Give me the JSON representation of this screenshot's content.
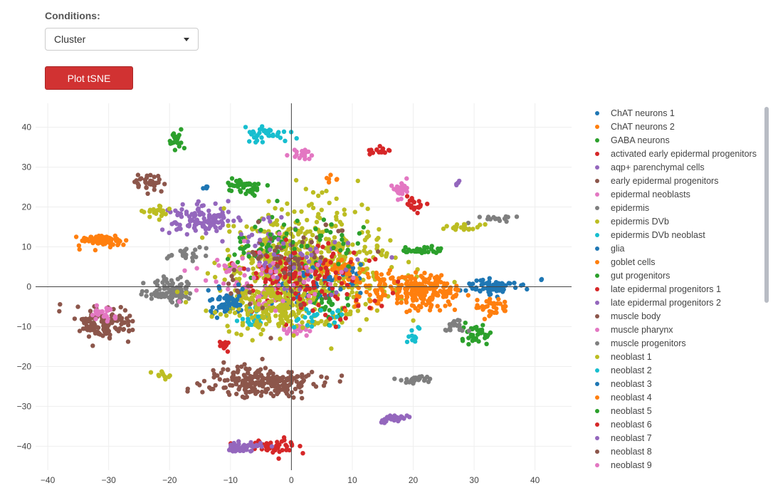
{
  "conditions": {
    "label": "Conditions:",
    "selected": "Cluster"
  },
  "plot_button": {
    "label": "Plot tSNE"
  },
  "chart_data": {
    "type": "scatter",
    "xlim": [
      -42,
      46
    ],
    "ylim": [
      -46,
      46
    ],
    "x_ticks": [
      -40,
      -30,
      -20,
      -10,
      0,
      10,
      20,
      30,
      40
    ],
    "y_ticks": [
      40,
      30,
      20,
      10,
      0,
      -10,
      -20,
      -30,
      -40
    ],
    "grid": true,
    "zero_lines": true,
    "legend_position": "right",
    "series": [
      {
        "name": "ChAT neurons 1",
        "color": "#1f77b4",
        "clusters": [
          [
            33,
            0,
            4,
            2,
            70
          ],
          [
            0.3,
            -1.5,
            4,
            4,
            30
          ],
          [
            -11,
            -5,
            2,
            2,
            25
          ]
        ]
      },
      {
        "name": "ChAT neurons 2",
        "color": "#ff7f0e",
        "clusters": [
          [
            -31,
            11.5,
            4,
            1.5,
            70
          ],
          [
            33,
            -5,
            3,
            2,
            35
          ],
          [
            7,
            27,
            1,
            1,
            6
          ]
        ]
      },
      {
        "name": "GABA neurons",
        "color": "#2ca02c",
        "clusters": [
          [
            -19,
            37,
            1.5,
            3,
            18
          ],
          [
            -8,
            25,
            3,
            2,
            45
          ],
          [
            30,
            -12,
            2.5,
            2.5,
            35
          ],
          [
            22,
            9,
            4,
            1,
            30
          ]
        ]
      },
      {
        "name": "activated early epidermal progenitors",
        "color": "#d62728",
        "clusters": [
          [
            14,
            34,
            2,
            1,
            18
          ],
          [
            20,
            21,
            2,
            1.5,
            20
          ],
          [
            -3,
            -40,
            4,
            2,
            50
          ],
          [
            -11,
            -14,
            0.8,
            2,
            10
          ]
        ]
      },
      {
        "name": "aqp+ parenchymal cells",
        "color": "#9467bd",
        "clusters": [
          [
            -15,
            17,
            5,
            3.5,
            120
          ],
          [
            -8,
            -40,
            3,
            1.5,
            40
          ],
          [
            17,
            -33,
            3,
            1,
            30
          ],
          [
            27,
            26,
            0.6,
            0.6,
            5
          ]
        ]
      },
      {
        "name": "early epidermal progenitors",
        "color": "#8c564b",
        "clusters": [
          [
            -5,
            -24,
            9,
            4,
            220
          ],
          [
            -31,
            -9,
            5,
            4,
            130
          ],
          [
            -23,
            26,
            2.5,
            2,
            35
          ]
        ]
      },
      {
        "name": "epidermal neoblasts",
        "color": "#e377c2",
        "clusters": [
          [
            2,
            33,
            2,
            1.5,
            18
          ],
          [
            18,
            24,
            2,
            2,
            25
          ],
          [
            1,
            -11,
            2,
            1.5,
            25
          ],
          [
            -31,
            -6.5,
            2,
            1.5,
            25
          ]
        ]
      },
      {
        "name": "epidermis",
        "color": "#7f7f7f",
        "clusters": [
          [
            -20,
            -1,
            4,
            3,
            90
          ],
          [
            20,
            -23,
            3,
            1,
            25
          ],
          [
            27,
            -10,
            2,
            1.5,
            20
          ],
          [
            33,
            17,
            3,
            1,
            15
          ]
        ]
      },
      {
        "name": "epidermis DVb",
        "color": "#bcbd22",
        "clusters": [
          [
            2,
            5,
            14,
            13,
            650
          ],
          [
            -22,
            19,
            2.5,
            1.5,
            20
          ],
          [
            28,
            15,
            4,
            1,
            20
          ],
          [
            -21,
            -22,
            1.5,
            1,
            10
          ]
        ]
      },
      {
        "name": "epidermis DVb neoblast",
        "color": "#17becf",
        "clusters": [
          [
            -4,
            38,
            4,
            2,
            40
          ],
          [
            -6,
            -8,
            2,
            3,
            25
          ],
          [
            20,
            -12,
            1,
            1.5,
            10
          ]
        ]
      },
      {
        "name": "glia",
        "color": "#1f77b4",
        "clusters": [
          [
            -14,
            25,
            0.6,
            0.6,
            4
          ],
          [
            41,
            2,
            0.3,
            0.3,
            2
          ],
          [
            5,
            2,
            6,
            5,
            40
          ]
        ]
      },
      {
        "name": "goblet cells",
        "color": "#ff7f0e",
        "clusters": [
          [
            22,
            -1,
            6,
            4,
            200
          ],
          [
            8,
            5,
            3,
            4,
            40
          ]
        ]
      },
      {
        "name": "gut progenitors",
        "color": "#2ca02c",
        "clusters": [
          [
            -5,
            10,
            6,
            8,
            40
          ],
          [
            6,
            -5,
            4,
            4,
            25
          ]
        ]
      },
      {
        "name": "late epidermal progenitors 1",
        "color": "#d62728",
        "clusters": [
          [
            0,
            3,
            8,
            9,
            90
          ]
        ]
      },
      {
        "name": "late epidermal progenitors 2",
        "color": "#9467bd",
        "clusters": [
          [
            -3,
            8,
            6,
            8,
            45
          ]
        ]
      },
      {
        "name": "muscle body",
        "color": "#8c564b",
        "clusters": [
          [
            2,
            8,
            9,
            9,
            30
          ]
        ]
      },
      {
        "name": "muscle pharynx",
        "color": "#e377c2",
        "clusters": [
          [
            -10,
            3,
            6,
            6,
            30
          ],
          [
            -5,
            -3,
            3,
            3,
            20
          ]
        ]
      },
      {
        "name": "muscle progenitors",
        "color": "#7f7f7f",
        "clusters": [
          [
            -17,
            8,
            3,
            2,
            25
          ]
        ]
      },
      {
        "name": "neoblast 1",
        "color": "#bcbd22",
        "clusters": [
          [
            -2,
            -5,
            10,
            6,
            160
          ]
        ]
      },
      {
        "name": "neoblast 2",
        "color": "#17becf",
        "clusters": [
          [
            3,
            -8,
            6,
            3,
            25
          ]
        ]
      },
      {
        "name": "neoblast 3",
        "color": "#1f77b4",
        "clusters": [
          [
            -10,
            -3,
            3,
            3,
            40
          ]
        ]
      },
      {
        "name": "neoblast 4",
        "color": "#ff7f0e",
        "clusters": [
          [
            14,
            0,
            5,
            5,
            60
          ]
        ]
      },
      {
        "name": "neoblast 5",
        "color": "#2ca02c",
        "clusters": [
          [
            2,
            12,
            9,
            7,
            35
          ]
        ]
      },
      {
        "name": "neoblast 6",
        "color": "#d62728",
        "clusters": [
          [
            4,
            0,
            10,
            9,
            60
          ]
        ]
      },
      {
        "name": "neoblast 7",
        "color": "#9467bd",
        "clusters": [
          [
            2,
            6,
            10,
            8,
            25
          ]
        ]
      },
      {
        "name": "neoblast 8",
        "color": "#8c564b",
        "clusters": [
          [
            -2,
            2,
            10,
            9,
            30
          ]
        ]
      },
      {
        "name": "neoblast 9",
        "color": "#e377c2",
        "clusters": [
          [
            0,
            4,
            9,
            9,
            30
          ]
        ]
      }
    ]
  }
}
